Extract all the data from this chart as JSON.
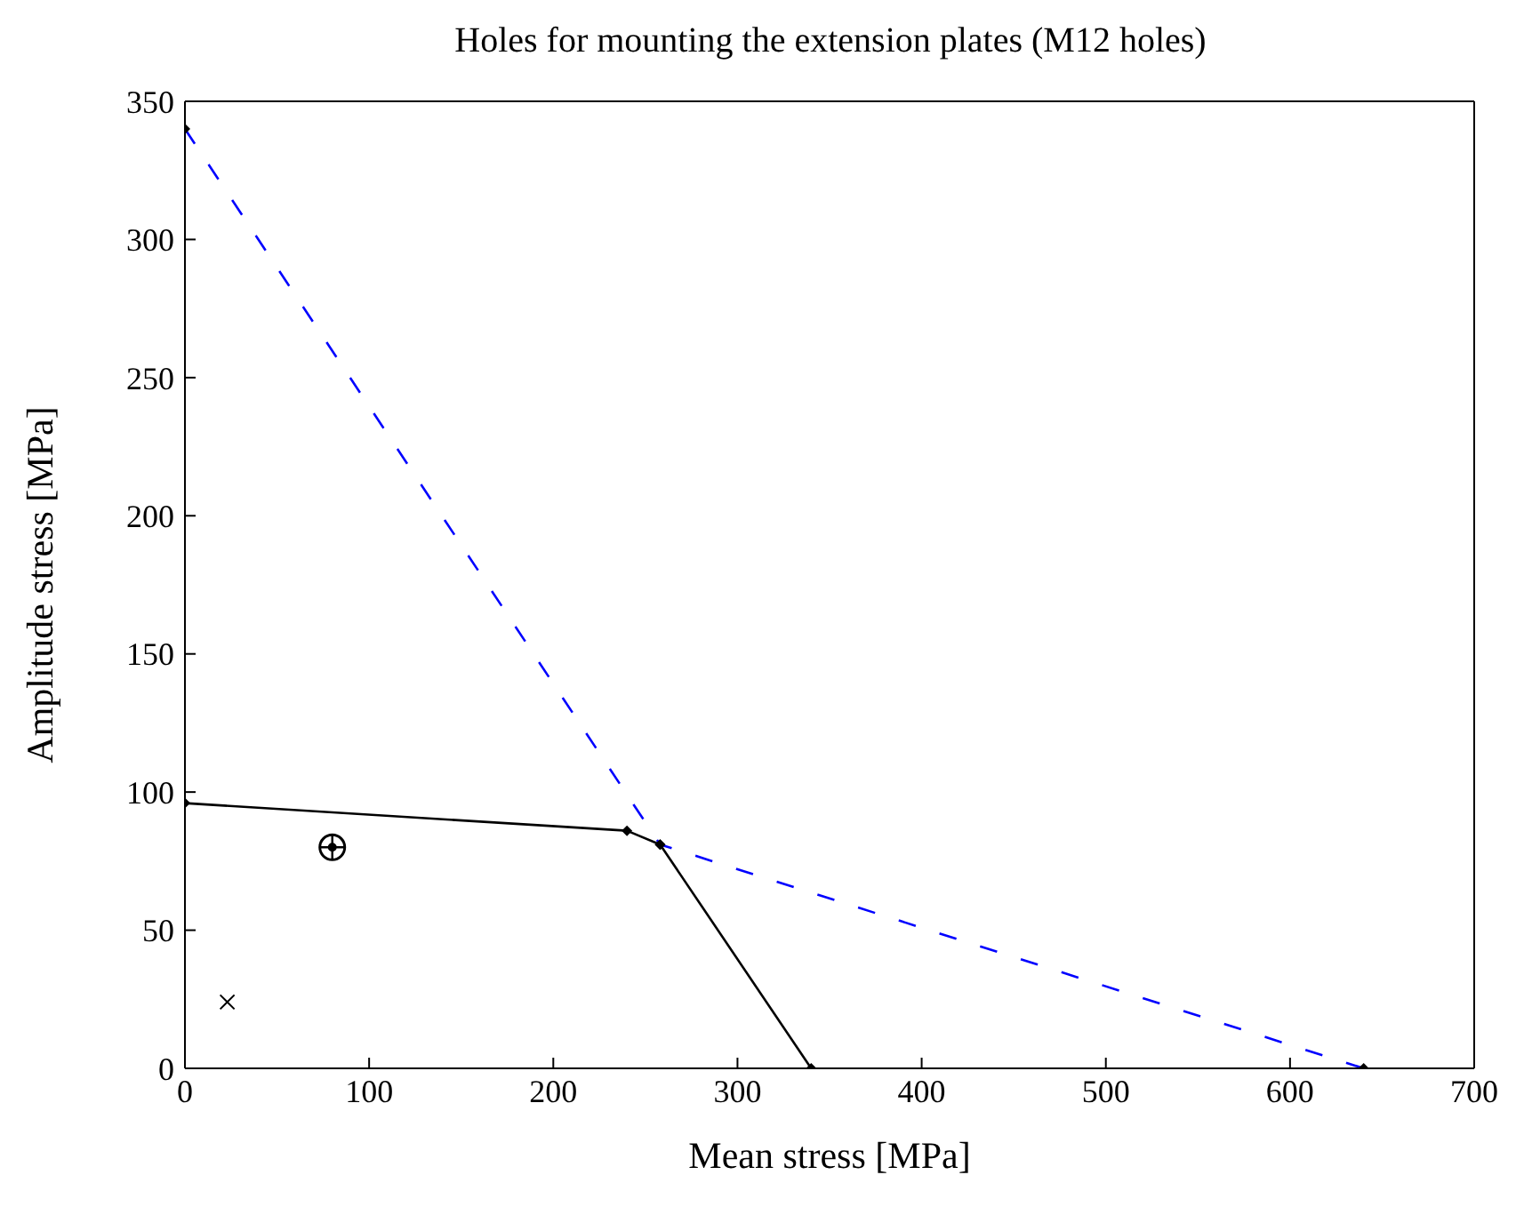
{
  "chart_data": {
    "type": "line",
    "title": "Holes for mounting the extension plates (M12 holes)",
    "xlabel": "Mean stress [MPa]",
    "ylabel": "Amplitude stress [MPa]",
    "xlim": [
      0,
      700
    ],
    "xticks": [
      0,
      100,
      200,
      300,
      400,
      500,
      600,
      700
    ],
    "ylim": [
      0,
      350
    ],
    "yticks": [
      0,
      50,
      100,
      150,
      200,
      250,
      300,
      350
    ],
    "grid": false,
    "series": [
      {
        "color": "#0000ff",
        "line_style": "dashed",
        "marker": "diamond",
        "x": [
          0,
          258,
          640
        ],
        "values": [
          340,
          81,
          0
        ]
      },
      {
        "color": "#000000",
        "line_style": "solid",
        "marker": "diamond",
        "x": [
          0,
          240,
          258,
          340
        ],
        "values": [
          96,
          86,
          81,
          0
        ]
      },
      {
        "type": "scatter",
        "color": "#000000",
        "marker": "circle",
        "x": [
          80
        ],
        "values": [
          80
        ]
      },
      {
        "type": "scatter",
        "color": "#000000",
        "marker": "cross",
        "x": [
          23
        ],
        "values": [
          24
        ]
      }
    ]
  }
}
